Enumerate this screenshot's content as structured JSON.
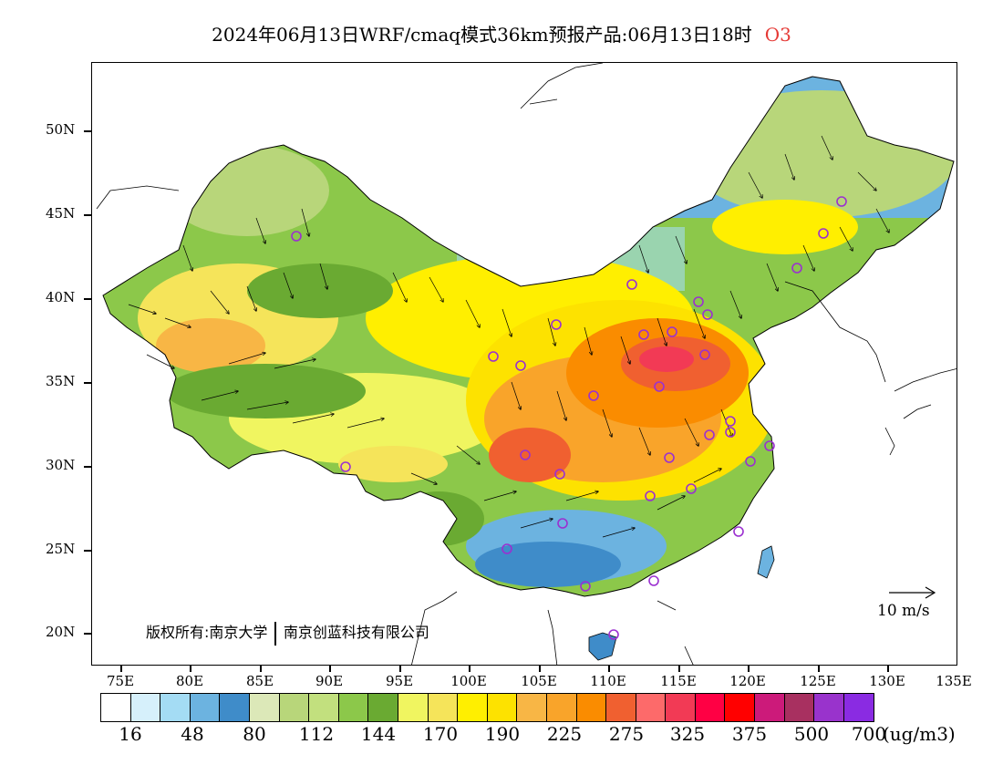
{
  "title": "2024年06月13日WRF/cmaq模式36km预报产品:06月13日18时",
  "pollutant": "O3",
  "lat_labels": [
    "50N",
    "45N",
    "40N",
    "35N",
    "30N",
    "25N",
    "20N"
  ],
  "lon_labels": [
    "75E",
    "80E",
    "85E",
    "90E",
    "95E",
    "100E",
    "105E",
    "110E",
    "115E",
    "120E",
    "125E",
    "130E",
    "135E"
  ],
  "copyright": {
    "prefix": "版权所有:南京大学",
    "company": "南京创蓝科技有限公司"
  },
  "reference_vector": "10 m/s",
  "legend": {
    "colors": [
      "#ffffff",
      "#d6f0fb",
      "#a4dcf4",
      "#6cb3e0",
      "#3f8cc9",
      "#dce8b8",
      "#b8d67a",
      "#c2e07e",
      "#8cc84a",
      "#6aaa32",
      "#f0f560",
      "#f5e45a",
      "#ffef00",
      "#fde200",
      "#f8b645",
      "#f9a42a",
      "#fa8c00",
      "#f06030",
      "#fd6a6a",
      "#f23a55",
      "#ff0044",
      "#ff0000",
      "#cc1a7a",
      "#a83060",
      "#9933cc",
      "#8a2be2"
    ],
    "labels": [
      "16",
      "48",
      "80",
      "112",
      "144",
      "170",
      "190",
      "225",
      "275",
      "325",
      "375",
      "500",
      "700"
    ],
    "unit": "(ug/m3)"
  }
}
